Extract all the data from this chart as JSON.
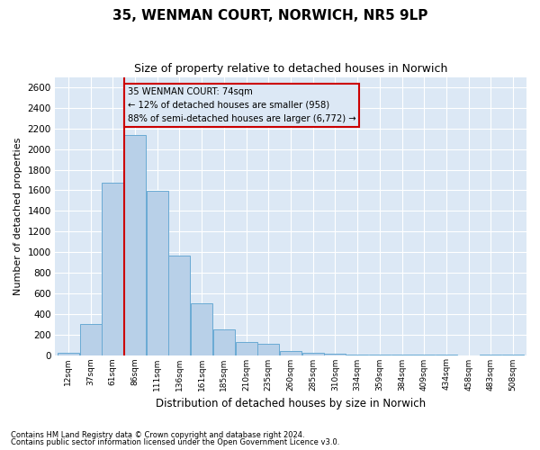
{
  "title": "35, WENMAN COURT, NORWICH, NR5 9LP",
  "subtitle": "Size of property relative to detached houses in Norwich",
  "xlabel": "Distribution of detached houses by size in Norwich",
  "ylabel": "Number of detached properties",
  "categories": [
    "12sqm",
    "37sqm",
    "61sqm",
    "86sqm",
    "111sqm",
    "136sqm",
    "161sqm",
    "185sqm",
    "210sqm",
    "235sqm",
    "260sqm",
    "285sqm",
    "310sqm",
    "334sqm",
    "359sqm",
    "384sqm",
    "409sqm",
    "434sqm",
    "458sqm",
    "483sqm",
    "508sqm"
  ],
  "values": [
    20,
    300,
    1670,
    2140,
    1595,
    970,
    500,
    248,
    125,
    105,
    38,
    20,
    15,
    8,
    3,
    2,
    1,
    1,
    0,
    2,
    1
  ],
  "bar_color": "#b8d0e8",
  "bar_edge_color": "#6aaad4",
  "annotation_box_color": "#cc0000",
  "annotation_line_color": "#cc0000",
  "annotation_text_line1": "35 WENMAN COURT: 74sqm",
  "annotation_text_line2": "← 12% of detached houses are smaller (958)",
  "annotation_text_line3": "88% of semi-detached houses are larger (6,772) →",
  "ylim": [
    0,
    2700
  ],
  "yticks": [
    0,
    200,
    400,
    600,
    800,
    1000,
    1200,
    1400,
    1600,
    1800,
    2000,
    2200,
    2400,
    2600
  ],
  "footnote1": "Contains HM Land Registry data © Crown copyright and database right 2024.",
  "footnote2": "Contains public sector information licensed under the Open Government Licence v3.0.",
  "fig_background_color": "#ffffff",
  "axes_background_color": "#dce8f5",
  "grid_color": "#ffffff",
  "title_fontsize": 11,
  "subtitle_fontsize": 9,
  "bin_width": 25
}
